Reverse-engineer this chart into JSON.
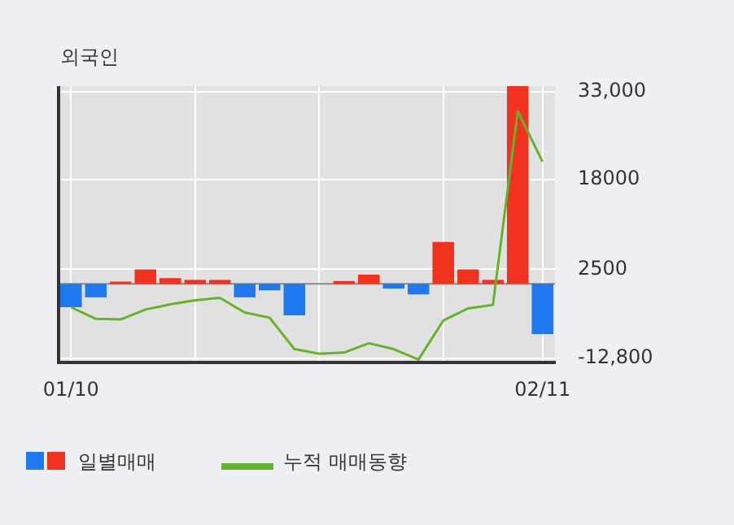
{
  "chart_data": {
    "type": "bar",
    "title": "외국인",
    "categories": [
      "01/10",
      null,
      null,
      null,
      null,
      null,
      null,
      null,
      null,
      null,
      null,
      null,
      null,
      null,
      null,
      null,
      null,
      null,
      null,
      "02/11"
    ],
    "series": [
      {
        "name": "일별매매",
        "colors": [
          "#1e78f0",
          "#1e78f0",
          "#f0321e",
          "#f0321e",
          "#f0321e",
          "#f0321e",
          "#f0321e",
          "#1e78f0",
          "#1e78f0",
          "#1e78f0",
          "#f0321e",
          "#f0321e",
          "#f0321e",
          "#1e78f0",
          "#1e78f0",
          "#f0321e",
          "#f0321e",
          "#f0321e",
          "#f0321e",
          "#1e78f0"
        ],
        "values": [
          -4000,
          -2300,
          400,
          2500,
          1000,
          700,
          700,
          -2300,
          -1100,
          -5400,
          0,
          500,
          1600,
          -800,
          -1800,
          7200,
          2500,
          700,
          34000,
          -8600
        ]
      },
      {
        "name": "누적 매매동향",
        "type": "line",
        "color": "#64b42a",
        "values": [
          -4000,
          -6000,
          -6100,
          -4400,
          -3500,
          -2800,
          -2400,
          -4900,
          -5800,
          -11200,
          -12000,
          -11800,
          -10200,
          -11200,
          -13000,
          -6300,
          -4200,
          -3600,
          29700,
          21000
        ]
      }
    ],
    "ylim": [
      -13500,
      34000
    ],
    "yticks": [
      {
        "value": 33000,
        "label": "33,000"
      },
      18000,
      2500,
      {
        "value": -12800,
        "label": "-12,800"
      }
    ],
    "grid": true,
    "legend": "bottom"
  }
}
